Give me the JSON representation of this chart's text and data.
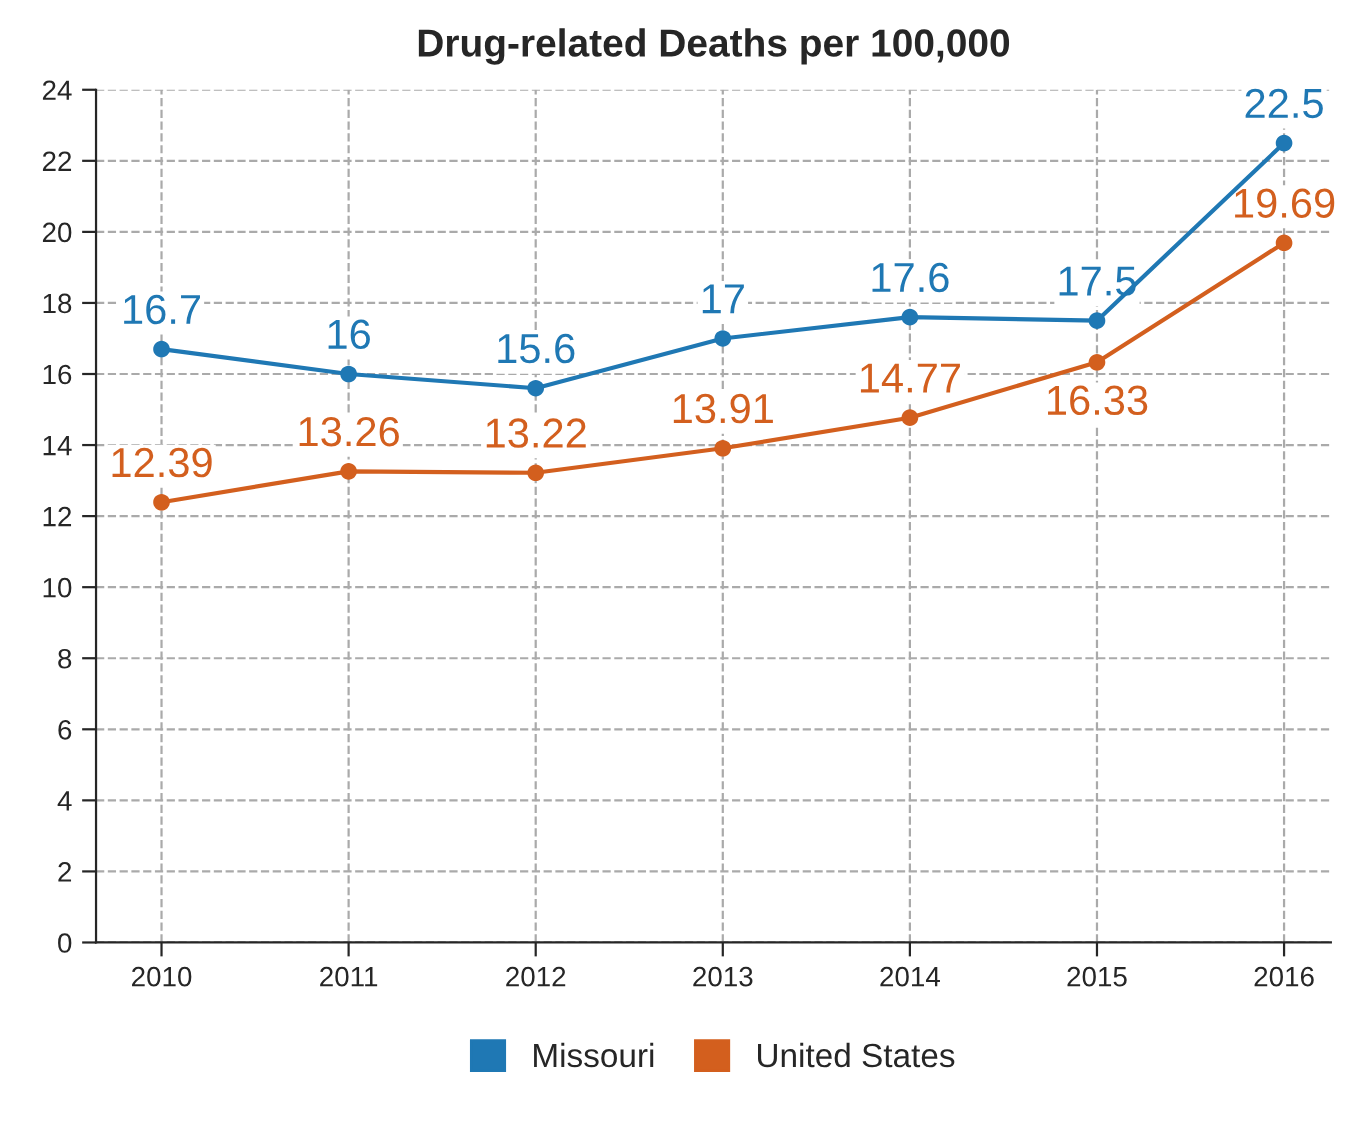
{
  "chart_data": {
    "type": "line",
    "title": "Drug-related Deaths per 100,000",
    "categories": [
      "2010",
      "2011",
      "2012",
      "2013",
      "2014",
      "2015",
      "2016"
    ],
    "series": [
      {
        "name": "Missouri",
        "color": "#1f78b4",
        "values": [
          16.7,
          16,
          15.6,
          17,
          17.6,
          17.5,
          22.5
        ]
      },
      {
        "name": "United States",
        "color": "#d35f1e",
        "values": [
          12.39,
          13.26,
          13.22,
          13.91,
          14.77,
          16.33,
          19.69
        ]
      }
    ],
    "ylim": [
      0,
      24
    ],
    "yticks": [
      0,
      2,
      4,
      6,
      8,
      10,
      12,
      14,
      16,
      18,
      20,
      22,
      24
    ],
    "grid": true,
    "legend": "bottom",
    "marker": "circle",
    "line_style": "solid",
    "data_labels": true
  }
}
